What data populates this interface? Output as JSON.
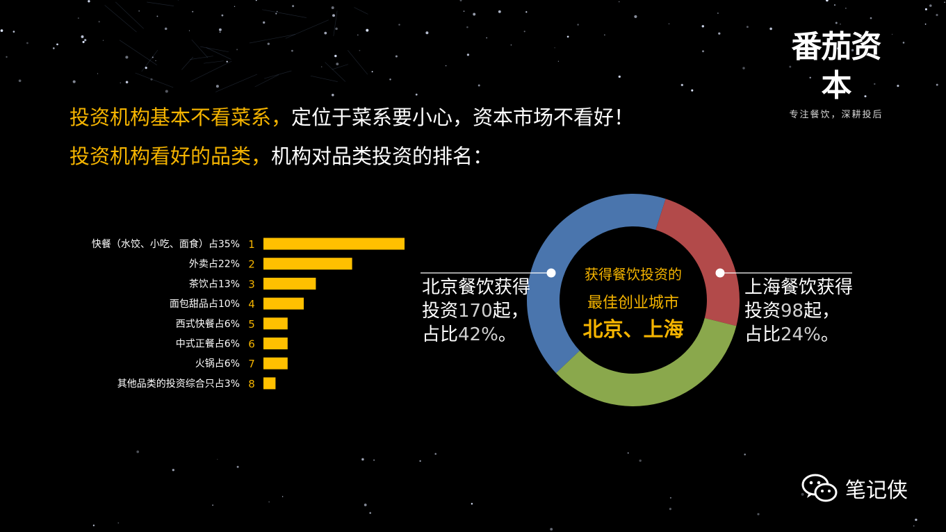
{
  "logo": {
    "title": "番茄资本",
    "subtitle": "专注餐饮，深耕投后"
  },
  "headline": {
    "line1_highlight": "投资机构基本不看菜系，",
    "line1_rest": "定位于菜系要小心，资本市场不看好！",
    "line2_highlight": "投资机构看好的品类，",
    "line2_rest": "机构对品类投资的排名："
  },
  "chart_data": [
    {
      "type": "bar",
      "orientation": "horizontal",
      "categories": [
        "快餐（水饺、小吃、面食）占35%",
        "外卖占22%",
        "茶饮占13%",
        "面包甜品占10%",
        "西式快餐占6%",
        "中式正餐占6%",
        "火锅占6%",
        "其他品类的投资综合只占3%"
      ],
      "ranks": [
        "1",
        "2",
        "3",
        "4",
        "5",
        "6",
        "7",
        "8"
      ],
      "values": [
        35,
        22,
        13,
        10,
        6,
        6,
        6,
        3
      ],
      "color": "#ffc000"
    },
    {
      "type": "pie",
      "style": "donut",
      "slices": [
        {
          "name": "北京",
          "value": 42,
          "color": "#4a75ad"
        },
        {
          "name": "上海",
          "value": 24,
          "color": "#b24a4a"
        },
        {
          "value": 34,
          "color": "#8aa84c"
        }
      ],
      "center_text": {
        "line1": "获得餐饮投资的",
        "line2": "最佳创业城市",
        "line3": "北京、上海"
      },
      "annotations": {
        "beijing": {
          "line1": "北京餐饮获得",
          "line2a": "投资",
          "line2num": "170",
          "line2b": "起，",
          "line3a": "占比",
          "line3num": "42%",
          "line3b": "。"
        },
        "shanghai": {
          "line1": "上海餐饮获得",
          "line2a": "投资",
          "line2num": "98",
          "line2b": "起，",
          "line3a": "占比",
          "line3num": "24%",
          "line3b": "。"
        }
      }
    }
  ],
  "footer": {
    "account": "笔记侠",
    "icon": "wechat-icon"
  }
}
